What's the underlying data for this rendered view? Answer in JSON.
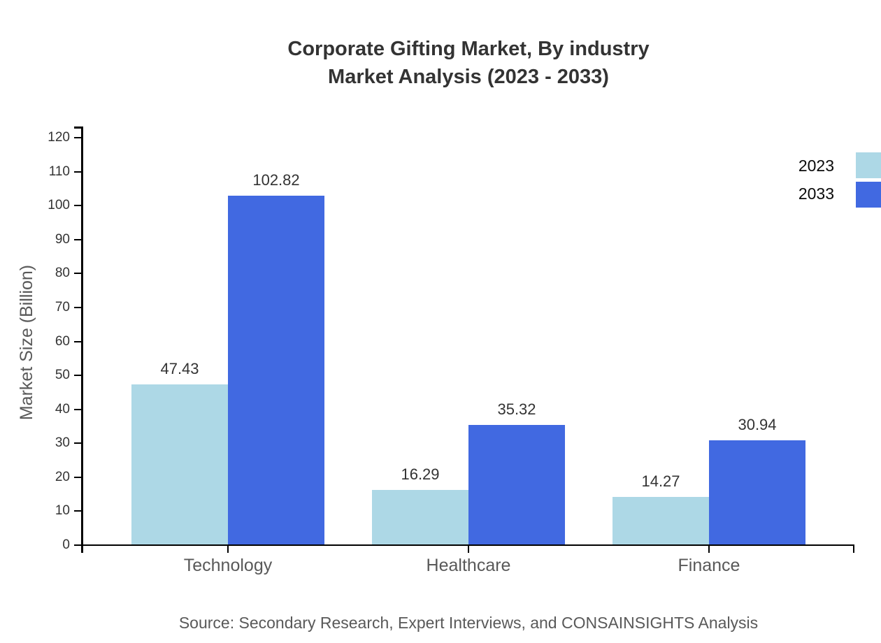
{
  "title": {
    "line1": "Corporate Gifting Market, By industry",
    "line2": "Market Analysis (2023 - 2033)"
  },
  "source": "Source: Secondary Research, Expert Interviews, and CONSAINSIGHTS Analysis",
  "chart_data": {
    "type": "bar",
    "grouped": true,
    "title": "Corporate Gifting Market, By industry Market Analysis (2023 - 2033)",
    "categories": [
      "Technology",
      "Healthcare",
      "Finance"
    ],
    "series": [
      {
        "name": "2023",
        "color": "#ADD8E6",
        "values": [
          47.43,
          16.29,
          14.27
        ]
      },
      {
        "name": "2033",
        "color": "#4169E1",
        "values": [
          102.82,
          35.32,
          30.94
        ]
      }
    ],
    "xlabel": "",
    "ylabel": "Market Size (Billion)",
    "ylim": [
      0,
      120
    ],
    "yticks": [
      0,
      10,
      20,
      30,
      40,
      50,
      60,
      70,
      80,
      90,
      100,
      110,
      120
    ],
    "grid": false,
    "value_labels": true,
    "legend_position": "top-right"
  },
  "colors": {
    "axis": "#000000",
    "title_text": "#333333",
    "tick_text": "#333333",
    "muted_text": "#595959",
    "legend_text": "#0a0a0a",
    "background": "#ffffff"
  }
}
